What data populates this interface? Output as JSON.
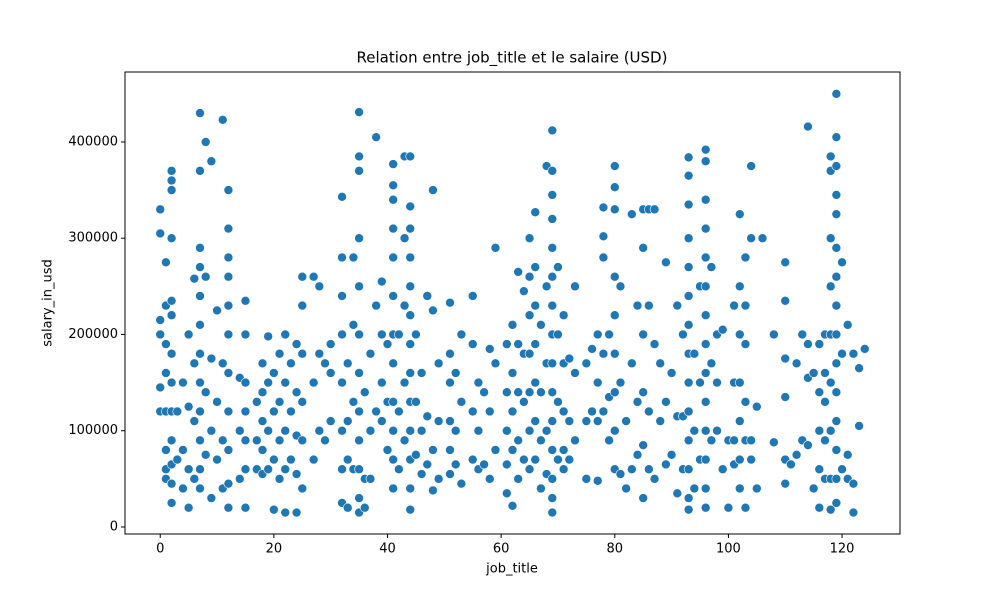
{
  "chart_data": {
    "type": "scatter",
    "title": "Relation entre job_title et le salaire (USD)",
    "x_label": "job_title",
    "y_label": "salary_in_usd",
    "color": "#1f77b4",
    "xlim": [
      -6.2,
      130.2
    ],
    "ylim": [
      -7300,
      472700
    ],
    "xticks": [
      0,
      20,
      40,
      60,
      80,
      100,
      120
    ],
    "yticks": [
      0,
      100000,
      200000,
      300000,
      400000
    ],
    "x": [
      0,
      0,
      0,
      0,
      0,
      0,
      1,
      1,
      1,
      1,
      1,
      1,
      1,
      1,
      2,
      2,
      2,
      2,
      2,
      2,
      2,
      2,
      2,
      2,
      2,
      2,
      2,
      3,
      3,
      4,
      4,
      4,
      5,
      5,
      5,
      5,
      6,
      6,
      6,
      6,
      7,
      7,
      7,
      7,
      7,
      7,
      7,
      7,
      7,
      7,
      7,
      7,
      8,
      8,
      8,
      8,
      9,
      9,
      9,
      9,
      10,
      10,
      10,
      11,
      11,
      11,
      11,
      12,
      12,
      12,
      12,
      12,
      12,
      12,
      12,
      12,
      12,
      12,
      14,
      14,
      14,
      15,
      15,
      15,
      15,
      15,
      15,
      15,
      17,
      17,
      17,
      18,
      18,
      18,
      18,
      18,
      19,
      19,
      19,
      19,
      20,
      20,
      20,
      20,
      21,
      21,
      21,
      21,
      22,
      22,
      22,
      22,
      22,
      23,
      23,
      23,
      24,
      24,
      24,
      24,
      24,
      25,
      25,
      25,
      25,
      25,
      25,
      27,
      27,
      27,
      28,
      28,
      28,
      29,
      29,
      30,
      30,
      30,
      32,
      32,
      32,
      32,
      32,
      32,
      32,
      32,
      33,
      33,
      33,
      33,
      34,
      34,
      34,
      34,
      35,
      35,
      35,
      35,
      35,
      35,
      35,
      35,
      35,
      35,
      35,
      35,
      36,
      36,
      36,
      37,
      37,
      37,
      38,
      38,
      38,
      39,
      39,
      39,
      39,
      40,
      40,
      40,
      41,
      41,
      41,
      41,
      41,
      41,
      41,
      41,
      41,
      41,
      41,
      41,
      42,
      42,
      42,
      43,
      43,
      43,
      43,
      43,
      44,
      44,
      44,
      44,
      44,
      44,
      44,
      44,
      44,
      44,
      44,
      44,
      44,
      45,
      45,
      45,
      46,
      46,
      46,
      47,
      47,
      47,
      48,
      48,
      48,
      48,
      49,
      49,
      49,
      51,
      51,
      51,
      51,
      51,
      51,
      52,
      52,
      52,
      53,
      53,
      53,
      55,
      55,
      55,
      55,
      56,
      56,
      56,
      57,
      57,
      58,
      58,
      58,
      59,
      59,
      59,
      61,
      61,
      61,
      61,
      61,
      62,
      62,
      62,
      62,
      62,
      63,
      63,
      63,
      63,
      63,
      64,
      64,
      64,
      64,
      65,
      65,
      65,
      65,
      65,
      65,
      65,
      66,
      66,
      66,
      66,
      66,
      66,
      66,
      67,
      67,
      67,
      67,
      68,
      68,
      68,
      68,
      68,
      69,
      69,
      69,
      69,
      69,
      69,
      69,
      69,
      69,
      69,
      69,
      69,
      69,
      69,
      69,
      70,
      70,
      70,
      70,
      71,
      71,
      71,
      71,
      71,
      72,
      72,
      72,
      73,
      73,
      73,
      75,
      75,
      75,
      76,
      76,
      77,
      77,
      77,
      77,
      78,
      78,
      78,
      78,
      78,
      79,
      79,
      79,
      80,
      80,
      80,
      80,
      80,
      80,
      80,
      80,
      80,
      81,
      81,
      81,
      82,
      82,
      83,
      83,
      83,
      84,
      84,
      84,
      85,
      85,
      85,
      85,
      85,
      85,
      86,
      86,
      86,
      86,
      87,
      87,
      87,
      88,
      88,
      89,
      89,
      89,
      90,
      90,
      91,
      91,
      91,
      92,
      92,
      92,
      93,
      93,
      93,
      93,
      93,
      93,
      93,
      93,
      93,
      93,
      93,
      93,
      93,
      93,
      94,
      94,
      94,
      95,
      95,
      95,
      96,
      96,
      96,
      96,
      96,
      96,
      96,
      96,
      96,
      96,
      96,
      96,
      96,
      96,
      97,
      97,
      97,
      98,
      98,
      98,
      99,
      99,
      100,
      100,
      101,
      101,
      101,
      101,
      102,
      102,
      102,
      102,
      102,
      102,
      102,
      103,
      103,
      103,
      103,
      103,
      103,
      104,
      104,
      104,
      104,
      105,
      105,
      106,
      108,
      108,
      110,
      110,
      110,
      110,
      110,
      110,
      111,
      112,
      112,
      113,
      113,
      114,
      114,
      114,
      114,
      115,
      115,
      116,
      116,
      116,
      116,
      116,
      117,
      117,
      117,
      117,
      117,
      118,
      118,
      118,
      118,
      118,
      118,
      118,
      118,
      118,
      119,
      119,
      119,
      119,
      119,
      119,
      119,
      119,
      119,
      119,
      119,
      119,
      119,
      119,
      119,
      120,
      120,
      120,
      121,
      121,
      121,
      122,
      122,
      122,
      123,
      123,
      124
    ],
    "values": [
      330000,
      305000,
      215000,
      200000,
      145000,
      120000,
      275000,
      230000,
      190000,
      160000,
      120000,
      80000,
      60000,
      50000,
      370000,
      360000,
      350000,
      300000,
      235000,
      220000,
      180000,
      150000,
      120000,
      90000,
      65000,
      45000,
      25000,
      120000,
      70000,
      150000,
      80000,
      40000,
      200000,
      125000,
      60000,
      20000,
      258000,
      170000,
      110000,
      50000,
      430000,
      370000,
      290000,
      270000,
      240000,
      210000,
      180000,
      150000,
      120000,
      90000,
      60000,
      40000,
      400000,
      260000,
      140000,
      75000,
      380000,
      175000,
      100000,
      30000,
      225000,
      130000,
      70000,
      423000,
      170000,
      90000,
      40000,
      350000,
      310000,
      280000,
      260000,
      230000,
      200000,
      160000,
      120000,
      80000,
      45000,
      20000,
      155000,
      100000,
      50000,
      235000,
      200000,
      150000,
      120000,
      90000,
      60000,
      20000,
      130000,
      90000,
      60000,
      170000,
      140000,
      110000,
      80000,
      55000,
      198000,
      150000,
      100000,
      60000,
      160000,
      120000,
      70000,
      18000,
      180000,
      130000,
      90000,
      50000,
      200000,
      150000,
      100000,
      60000,
      15000,
      170000,
      120000,
      70000,
      190000,
      140000,
      95000,
      55000,
      15000,
      260000,
      230000,
      180000,
      130000,
      90000,
      40000,
      260000,
      150000,
      70000,
      250000,
      180000,
      100000,
      170000,
      90000,
      190000,
      160000,
      110000,
      343000,
      280000,
      240000,
      200000,
      150000,
      100000,
      60000,
      25000,
      170000,
      110000,
      70000,
      20000,
      280000,
      210000,
      130000,
      60000,
      431000,
      385000,
      370000,
      300000,
      250000,
      200000,
      160000,
      120000,
      90000,
      60000,
      30000,
      15000,
      140000,
      50000,
      20000,
      180000,
      100000,
      50000,
      405000,
      230000,
      120000,
      255000,
      200000,
      150000,
      110000,
      190000,
      130000,
      80000,
      377000,
      355000,
      340000,
      310000,
      280000,
      240000,
      200000,
      170000,
      130000,
      100000,
      70000,
      40000,
      200000,
      120000,
      60000,
      385000,
      300000,
      230000,
      150000,
      90000,
      385000,
      333000,
      310000,
      280000,
      250000,
      220000,
      190000,
      160000,
      130000,
      100000,
      70000,
      40000,
      18000,
      200000,
      130000,
      75000,
      160000,
      100000,
      55000,
      240000,
      115000,
      65000,
      350000,
      225000,
      80000,
      38000,
      170000,
      110000,
      50000,
      233000,
      180000,
      150000,
      110000,
      80000,
      55000,
      160000,
      100000,
      65000,
      200000,
      130000,
      45000,
      240000,
      190000,
      120000,
      70000,
      150000,
      100000,
      60000,
      140000,
      65000,
      185000,
      120000,
      50000,
      290000,
      170000,
      80000,
      190000,
      140000,
      100000,
      65000,
      35000,
      210000,
      160000,
      120000,
      80000,
      22000,
      265000,
      190000,
      140000,
      90000,
      50000,
      245000,
      180000,
      130000,
      70000,
      300000,
      260000,
      220000,
      180000,
      140000,
      100000,
      60000,
      327000,
      270000,
      230000,
      190000,
      150000,
      110000,
      70000,
      210000,
      140000,
      90000,
      40000,
      375000,
      250000,
      170000,
      100000,
      55000,
      412000,
      370000,
      345000,
      320000,
      290000,
      260000,
      230000,
      200000,
      170000,
      140000,
      110000,
      80000,
      50000,
      30000,
      15000,
      270000,
      200000,
      130000,
      70000,
      220000,
      170000,
      120000,
      80000,
      60000,
      175000,
      110000,
      70000,
      250000,
      160000,
      90000,
      170000,
      110000,
      50000,
      185000,
      120000,
      200000,
      150000,
      110000,
      48000,
      332000,
      302000,
      280000,
      180000,
      120000,
      200000,
      135000,
      90000,
      375000,
      353000,
      330000,
      260000,
      220000,
      180000,
      140000,
      100000,
      60000,
      250000,
      150000,
      55000,
      110000,
      40000,
      325000,
      170000,
      60000,
      230000,
      130000,
      75000,
      330000,
      290000,
      200000,
      140000,
      85000,
      30000,
      330000,
      230000,
      120000,
      60000,
      330000,
      190000,
      50000,
      170000,
      110000,
      275000,
      130000,
      65000,
      160000,
      75000,
      230000,
      115000,
      35000,
      200000,
      115000,
      60000,
      384000,
      365000,
      335000,
      300000,
      270000,
      240000,
      210000,
      180000,
      150000,
      120000,
      90000,
      60000,
      30000,
      18000,
      180000,
      100000,
      40000,
      250000,
      150000,
      70000,
      392000,
      380000,
      340000,
      310000,
      280000,
      250000,
      220000,
      190000,
      160000,
      130000,
      100000,
      70000,
      40000,
      20000,
      270000,
      170000,
      90000,
      200000,
      150000,
      100000,
      205000,
      60000,
      90000,
      20000,
      230000,
      150000,
      90000,
      65000,
      325000,
      250000,
      200000,
      150000,
      110000,
      70000,
      40000,
      280000,
      230000,
      190000,
      130000,
      90000,
      20000,
      375000,
      300000,
      90000,
      70000,
      125000,
      40000,
      300000,
      200000,
      88000,
      275000,
      235000,
      175000,
      135000,
      70000,
      45000,
      65000,
      170000,
      75000,
      200000,
      90000,
      416000,
      190000,
      155000,
      85000,
      160000,
      40000,
      190000,
      140000,
      100000,
      60000,
      20000,
      200000,
      160000,
      130000,
      90000,
      50000,
      385000,
      370000,
      300000,
      250000,
      200000,
      150000,
      100000,
      50000,
      18000,
      450000,
      405000,
      375000,
      345000,
      325000,
      290000,
      260000,
      230000,
      200000,
      170000,
      140000,
      110000,
      80000,
      50000,
      25000,
      275000,
      180000,
      60000,
      210000,
      75000,
      50000,
      180000,
      45000,
      15000,
      165000,
      105000,
      185000
    ]
  }
}
